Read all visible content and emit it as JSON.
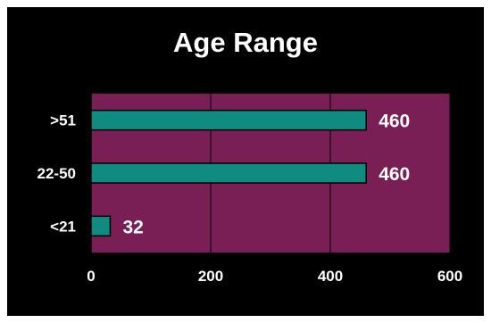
{
  "chart_data": {
    "type": "bar",
    "orientation": "horizontal",
    "title": "Age Range",
    "categories": [
      ">51",
      "22-50",
      "<21"
    ],
    "values": [
      460,
      460,
      32
    ],
    "xlim": [
      0,
      600
    ],
    "xticks": [
      0,
      200,
      400,
      600
    ],
    "grid": true,
    "xlabel": "",
    "ylabel": ""
  },
  "colors": {
    "plot_background": "#7a1f56",
    "bar_fill": "#0f8c7f",
    "bar_stroke": "#000000",
    "frame_background": "#000000",
    "text": "#ffffff",
    "grid": "#000000"
  }
}
